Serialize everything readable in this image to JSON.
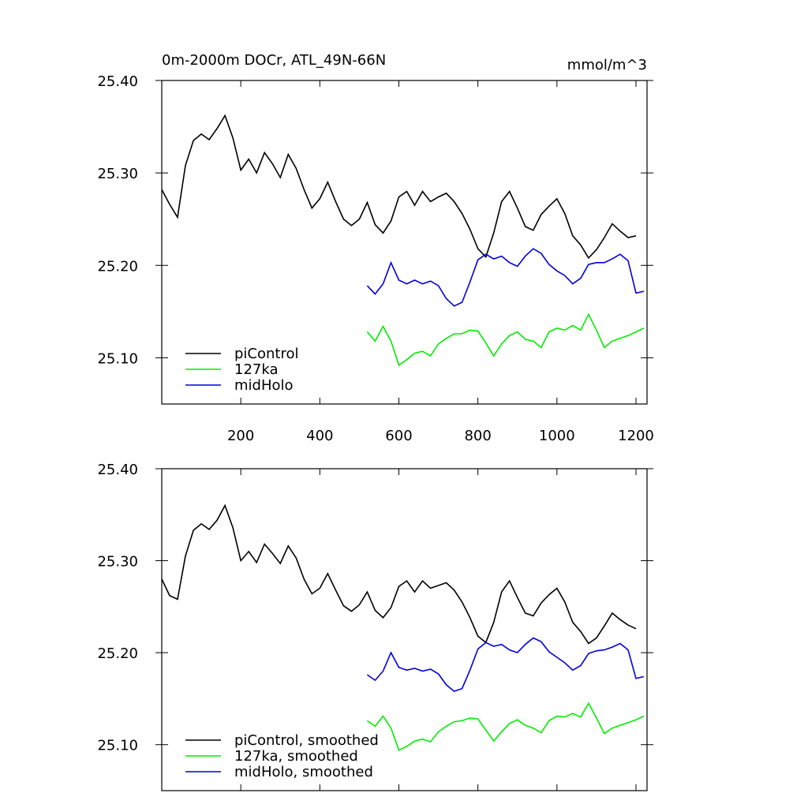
{
  "chart_data": [
    {
      "type": "line",
      "title": "0m-2000m DOCr, ATL_49N-66N",
      "units": "mmol/m^3",
      "x": [
        0,
        20,
        40,
        60,
        80,
        100,
        120,
        140,
        160,
        180,
        200,
        220,
        240,
        260,
        280,
        300,
        320,
        340,
        360,
        380,
        400,
        420,
        440,
        460,
        480,
        500,
        520,
        540,
        560,
        580,
        600,
        620,
        640,
        660,
        680,
        700,
        720,
        740,
        760,
        780,
        800,
        820,
        840,
        860,
        880,
        900,
        920,
        940,
        960,
        980,
        1000,
        1020,
        1040,
        1060,
        1080,
        1100,
        1120,
        1140,
        1160,
        1180,
        1200,
        1220
      ],
      "series": [
        {
          "name": "piControl",
          "color": "#000000",
          "values": [
            25.282,
            25.266,
            25.252,
            25.308,
            25.335,
            25.342,
            25.336,
            25.348,
            25.362,
            25.338,
            25.303,
            25.315,
            25.3,
            25.322,
            25.31,
            25.295,
            25.32,
            25.305,
            25.282,
            25.262,
            25.272,
            25.29,
            25.269,
            25.25,
            25.243,
            25.25,
            25.268,
            25.244,
            25.235,
            25.248,
            25.274,
            25.28,
            25.265,
            25.28,
            25.269,
            25.274,
            25.278,
            25.269,
            25.256,
            25.239,
            25.218,
            25.209,
            25.235,
            25.269,
            25.28,
            25.262,
            25.242,
            25.238,
            25.255,
            25.264,
            25.272,
            25.256,
            25.232,
            25.222,
            25.208,
            25.217,
            25.23,
            25.245,
            25.237,
            25.23,
            25.232,
            null
          ]
        },
        {
          "name": "127ka",
          "color": "#00ee00",
          "values": [
            null,
            null,
            null,
            null,
            null,
            null,
            null,
            null,
            null,
            null,
            null,
            null,
            null,
            null,
            null,
            null,
            null,
            null,
            null,
            null,
            null,
            null,
            null,
            null,
            null,
            null,
            25.128,
            25.118,
            25.134,
            25.118,
            25.092,
            25.098,
            25.105,
            25.107,
            25.102,
            25.115,
            25.121,
            25.126,
            25.126,
            25.13,
            25.129,
            25.116,
            25.102,
            25.115,
            25.124,
            25.128,
            25.12,
            25.118,
            25.111,
            25.128,
            25.132,
            25.13,
            25.135,
            25.13,
            25.147,
            25.13,
            25.111,
            25.118,
            25.121,
            25.124,
            25.128,
            25.132
          ]
        },
        {
          "name": "midHolo",
          "color": "#0000dd",
          "values": [
            null,
            null,
            null,
            null,
            null,
            null,
            null,
            null,
            null,
            null,
            null,
            null,
            null,
            null,
            null,
            null,
            null,
            null,
            null,
            null,
            null,
            null,
            null,
            null,
            null,
            null,
            25.178,
            25.169,
            25.18,
            25.203,
            25.184,
            25.18,
            25.184,
            25.18,
            25.183,
            25.178,
            25.164,
            25.156,
            25.16,
            25.182,
            25.206,
            25.212,
            25.207,
            25.21,
            25.203,
            25.199,
            25.21,
            25.218,
            25.213,
            25.201,
            25.194,
            25.189,
            25.18,
            25.186,
            25.201,
            25.203,
            25.203,
            25.207,
            25.212,
            25.205,
            25.17,
            25.172
          ]
        }
      ],
      "xlim": [
        0,
        1228
      ],
      "xticks": [
        200,
        400,
        600,
        800,
        1000,
        1200
      ],
      "ylim": [
        25.05,
        25.4
      ],
      "yticks": [
        {
          "value": 25.1,
          "label": "25.10"
        },
        {
          "value": 25.2,
          "label": "25.20"
        },
        {
          "value": 25.3,
          "label": "25.30"
        },
        {
          "value": 25.4,
          "label": "25.40"
        }
      ],
      "legend": "lower left",
      "grid": false
    },
    {
      "type": "line",
      "x": [
        0,
        20,
        40,
        60,
        80,
        100,
        120,
        140,
        160,
        180,
        200,
        220,
        240,
        260,
        280,
        300,
        320,
        340,
        360,
        380,
        400,
        420,
        440,
        460,
        480,
        500,
        520,
        540,
        560,
        580,
        600,
        620,
        640,
        660,
        680,
        700,
        720,
        740,
        760,
        780,
        800,
        820,
        840,
        860,
        880,
        900,
        920,
        940,
        960,
        980,
        1000,
        1020,
        1040,
        1060,
        1080,
        1100,
        1120,
        1140,
        1160,
        1180,
        1200,
        1220
      ],
      "series": [
        {
          "name": "piControl, smoothed",
          "color": "#000000",
          "values": [
            25.28,
            25.262,
            25.258,
            25.305,
            25.333,
            25.34,
            25.334,
            25.344,
            25.36,
            25.336,
            25.3,
            25.31,
            25.298,
            25.318,
            25.308,
            25.297,
            25.316,
            25.303,
            25.28,
            25.264,
            25.27,
            25.286,
            25.268,
            25.251,
            25.245,
            25.252,
            25.266,
            25.246,
            25.238,
            25.249,
            25.272,
            25.278,
            25.266,
            25.278,
            25.27,
            25.273,
            25.276,
            25.268,
            25.255,
            25.238,
            25.218,
            25.211,
            25.233,
            25.266,
            25.278,
            25.26,
            25.243,
            25.24,
            25.254,
            25.263,
            25.27,
            25.255,
            25.233,
            25.223,
            25.21,
            25.216,
            25.229,
            25.243,
            25.236,
            25.23,
            25.226,
            null
          ]
        },
        {
          "name": "127ka, smoothed",
          "color": "#00ee00",
          "values": [
            null,
            null,
            null,
            null,
            null,
            null,
            null,
            null,
            null,
            null,
            null,
            null,
            null,
            null,
            null,
            null,
            null,
            null,
            null,
            null,
            null,
            null,
            null,
            null,
            null,
            null,
            25.126,
            25.12,
            25.131,
            25.118,
            25.094,
            25.098,
            25.104,
            25.106,
            25.103,
            25.114,
            25.12,
            25.125,
            25.126,
            25.129,
            25.128,
            25.116,
            25.104,
            25.114,
            25.123,
            25.127,
            25.121,
            25.118,
            25.113,
            25.126,
            25.131,
            25.13,
            25.134,
            25.13,
            25.145,
            25.129,
            25.112,
            25.118,
            25.121,
            25.124,
            25.127,
            25.131
          ]
        },
        {
          "name": "midHolo, smoothed",
          "color": "#0000dd",
          "values": [
            null,
            null,
            null,
            null,
            null,
            null,
            null,
            null,
            null,
            null,
            null,
            null,
            null,
            null,
            null,
            null,
            null,
            null,
            null,
            null,
            null,
            null,
            null,
            null,
            null,
            null,
            25.176,
            25.17,
            25.18,
            25.2,
            25.184,
            25.181,
            25.183,
            25.18,
            25.182,
            25.177,
            25.165,
            25.158,
            25.161,
            25.181,
            25.204,
            25.211,
            25.207,
            25.209,
            25.203,
            25.2,
            25.209,
            25.216,
            25.212,
            25.201,
            25.195,
            25.189,
            25.181,
            25.186,
            25.199,
            25.202,
            25.203,
            25.206,
            25.21,
            25.203,
            25.172,
            25.174
          ]
        }
      ],
      "xlim": [
        0,
        1228
      ],
      "ylim": [
        25.05,
        25.4
      ],
      "yticks": [
        {
          "value": 25.1,
          "label": "25.10"
        },
        {
          "value": 25.2,
          "label": "25.20"
        },
        {
          "value": 25.3,
          "label": "25.30"
        },
        {
          "value": 25.4,
          "label": "25.40"
        }
      ],
      "legend": "lower left",
      "grid": false
    }
  ]
}
